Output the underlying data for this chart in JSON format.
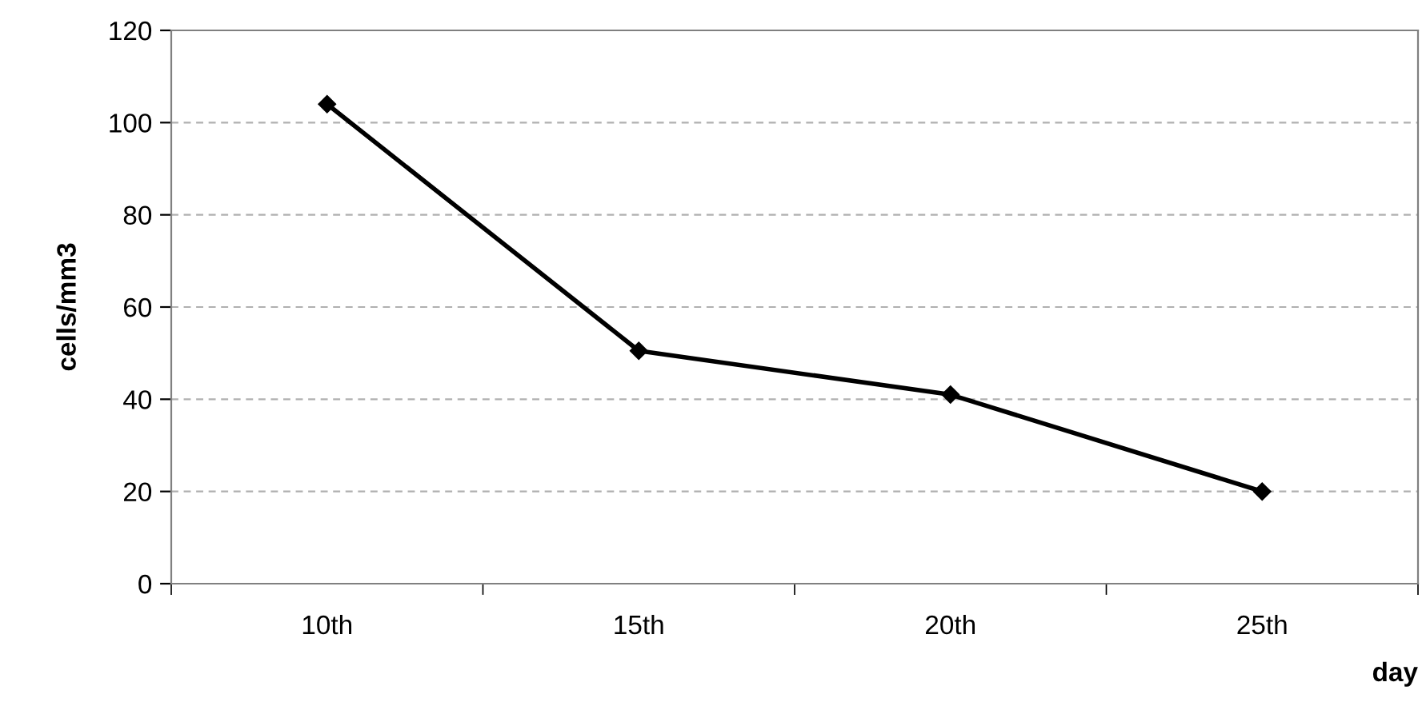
{
  "chart_data": {
    "type": "line",
    "xlabel": "day",
    "ylabel": "cells/mm3",
    "categories": [
      "10th",
      "15th",
      "20th",
      "25th"
    ],
    "series": [
      {
        "color": "#000000",
        "values": [
          104,
          50.5,
          41,
          20
        ]
      }
    ],
    "ylim": [
      0,
      120
    ],
    "yticks": [
      0,
      20,
      40,
      60,
      80,
      100,
      120
    ],
    "grid": "y",
    "marker": "diamond",
    "line_style": "solid"
  }
}
